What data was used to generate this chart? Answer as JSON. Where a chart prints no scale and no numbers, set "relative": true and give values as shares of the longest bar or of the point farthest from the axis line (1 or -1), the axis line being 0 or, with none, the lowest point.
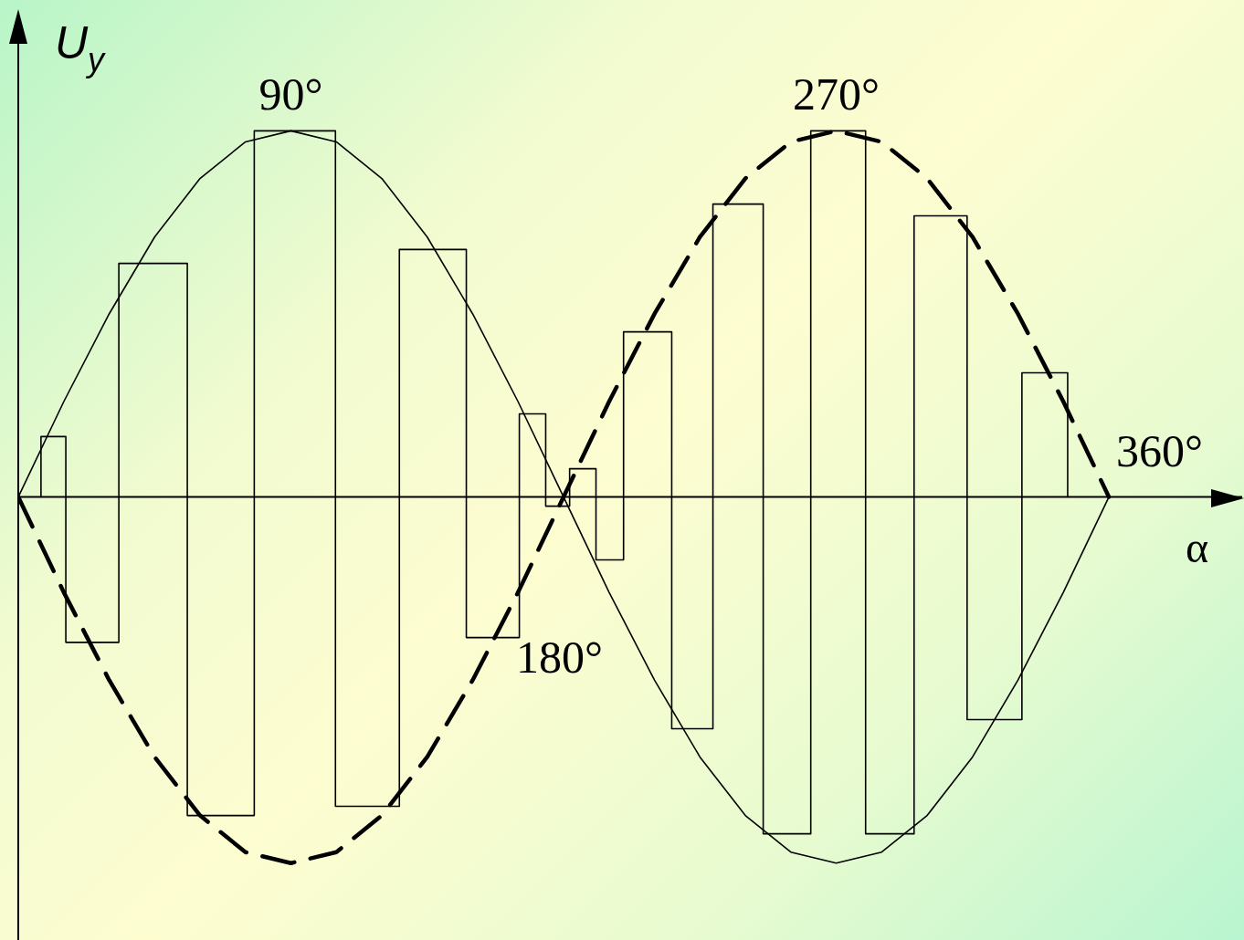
{
  "chart_data": {
    "type": "line",
    "relative": true,
    "xlabel": "α",
    "ylabel": "U$_{y}$",
    "xlim": [
      0,
      404
    ],
    "xticks": [
      {
        "value": 90,
        "label": "90°"
      },
      {
        "value": 270,
        "label": "270°"
      }
    ],
    "legend": false,
    "marker": "none",
    "series": [
      {
        "color": "#000000",
        "line_style": "solid",
        "x": [
          0,
          15,
          30,
          45,
          60,
          75,
          90,
          105,
          120,
          135,
          150,
          165,
          180,
          195,
          210,
          225,
          240,
          255,
          270,
          285,
          300,
          315,
          330,
          345,
          360
        ],
        "values": [
          0,
          0.26,
          0.5,
          0.71,
          0.87,
          0.97,
          1,
          0.97,
          0.87,
          0.71,
          0.5,
          0.26,
          0,
          -0.26,
          -0.5,
          -0.71,
          -0.87,
          -0.97,
          -1,
          -0.97,
          -0.87,
          -0.71,
          -0.5,
          -0.26,
          0
        ]
      },
      {
        "color": "#000000",
        "line_style": "dashed",
        "x": [
          0,
          15,
          30,
          45,
          60,
          75,
          90,
          105,
          120,
          135,
          150,
          165,
          180,
          195,
          210,
          225,
          240,
          255,
          270,
          285,
          300,
          315,
          330,
          345,
          360
        ],
        "values": [
          0,
          -0.26,
          -0.5,
          -0.71,
          -0.87,
          -0.97,
          -1,
          -0.97,
          -0.87,
          -0.71,
          -0.5,
          -0.26,
          0,
          0.26,
          0.5,
          0.71,
          0.87,
          0.97,
          1,
          0.97,
          0.87,
          0.71,
          0.5,
          0.26,
          0
        ]
      },
      {
        "color": "#000000",
        "line_style": "solid",
        "x": [
          7.5,
          7.5,
          15.7,
          15.7,
          33.2,
          33.2,
          55.8,
          55.8,
          77.9,
          77.9,
          104.7,
          104.7,
          125.8,
          125.8,
          147.9,
          147.9,
          165.4,
          165.4,
          174.1,
          174.1,
          182,
          182,
          190.7,
          190.7,
          199.8,
          199.8,
          215.7,
          215.7,
          229.3,
          229.3,
          245.9,
          245.9,
          261.6,
          261.6,
          279.7,
          279.7,
          295.7,
          295.7,
          313.2,
          313.2,
          331.3,
          331.3,
          346.4,
          346.4
        ],
        "values": [
          0,
          0.165,
          0.165,
          -0.397,
          -0.397,
          0.638,
          0.638,
          -0.87,
          -0.87,
          1,
          1,
          -0.845,
          -0.845,
          0.676,
          0.676,
          -0.384,
          -0.384,
          0.227,
          0.227,
          -0.025,
          -0.025,
          0.077,
          0.077,
          -0.172,
          -0.172,
          0.451,
          0.451,
          -0.633,
          -0.633,
          0.8,
          0.8,
          -0.92,
          -0.92,
          1,
          1,
          -0.92,
          -0.92,
          0.768,
          0.768,
          -0.608,
          -0.608,
          0.339,
          0.339,
          0
        ]
      }
    ],
    "annotations": [
      {
        "text": "180°",
        "x": 180,
        "y": 0
      },
      {
        "text": "360°",
        "x": 360,
        "y": 0
      }
    ]
  }
}
